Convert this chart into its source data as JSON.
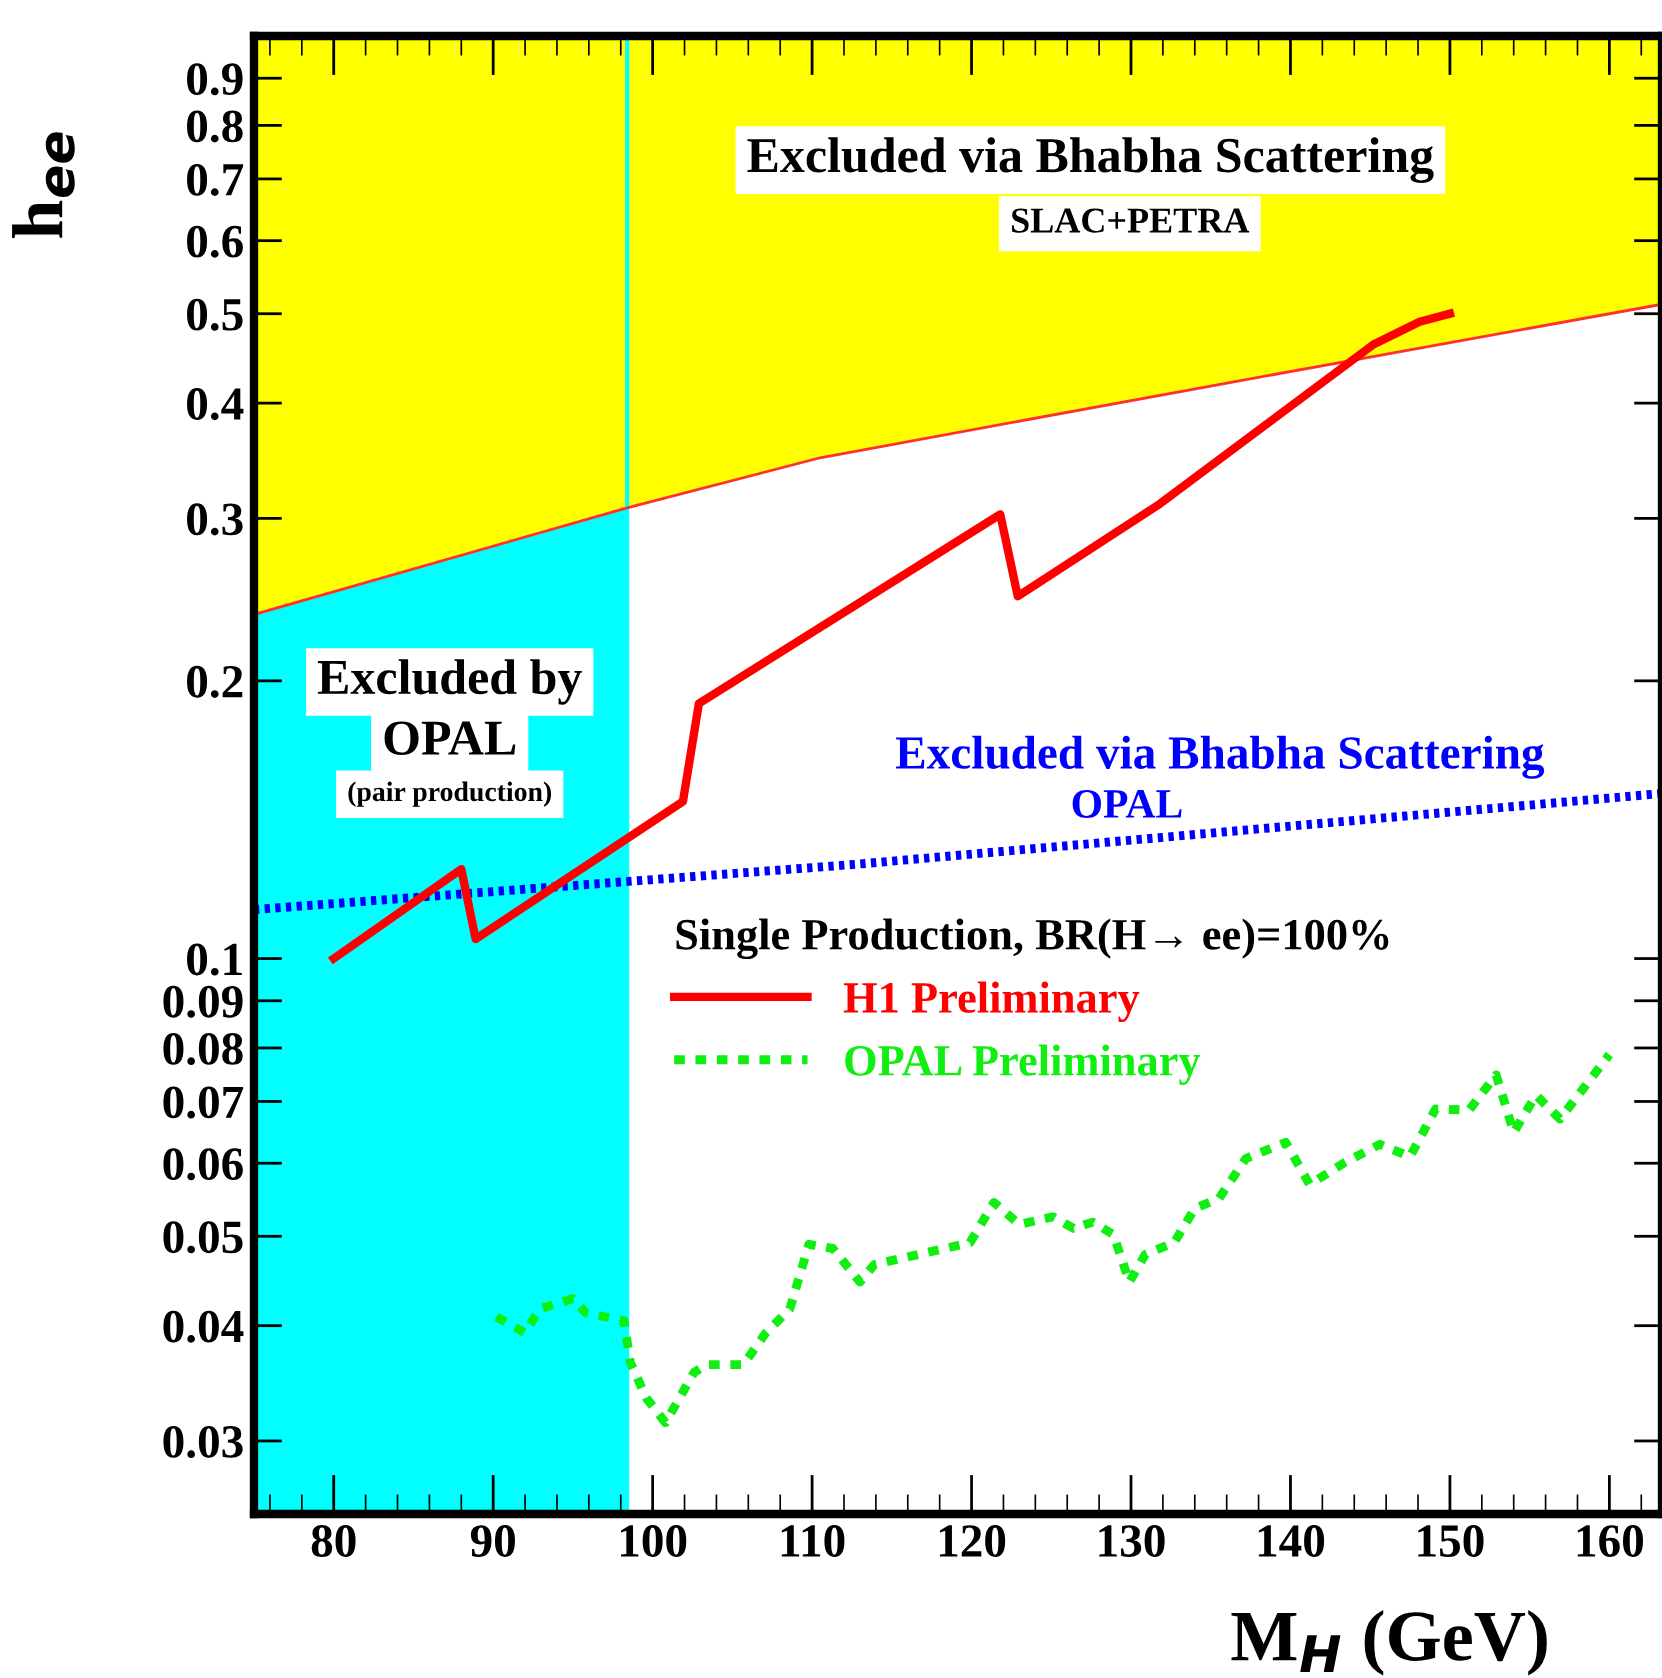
{
  "chart_data": {
    "type": "line",
    "xlabel": "M$_{H}$ (GeV)",
    "ylabel": "h$_{ee}$",
    "legend_title": "Single Production, BR(H→ ee)=100%",
    "log": "y",
    "grid": false,
    "legend": "right",
    "xlim": [
      75,
      163.3
    ],
    "xticks": [
      80,
      90,
      100,
      110,
      120,
      130,
      140,
      150,
      160
    ],
    "ylim": [
      0.025,
      1.0
    ],
    "yticks": [
      0.03,
      0.04,
      0.05,
      0.06,
      0.07,
      0.08,
      0.09,
      0.1,
      0.2,
      0.3,
      0.4,
      0.5,
      0.6,
      0.7,
      0.8,
      0.9
    ],
    "series": [
      {
        "type": "line",
        "color": "#ff3030",
        "line_style": "solid",
        "x": [
          75,
          98.4,
          110.5,
          135.5,
          163.3
        ],
        "values": [
          0.236,
          0.308,
          0.349,
          0.419,
          0.512
        ]
      },
      {
        "type": "area",
        "color": "#ffff00",
        "x": [
          75,
          98.4,
          110.5,
          135.5,
          163.3
        ],
        "values": [
          1.0,
          1.0,
          1.0,
          1.0,
          1.0
        ]
      },
      {
        "type": "area",
        "color": "#00ffff",
        "x": [
          75,
          98.4
        ],
        "values": [
          0.236,
          0.308
        ]
      },
      {
        "type": "line",
        "name": "Excluded via Bhabha Scattering\nOPAL",
        "color": "#0000ff",
        "line_style": "dotted",
        "x": [
          75,
          112.7,
          163.3
        ],
        "values": [
          0.113,
          0.1265,
          0.151
        ]
      },
      {
        "name": "H1 Preliminary",
        "color": "#ff0000",
        "line_style": "solid",
        "x": [
          80,
          88.0,
          88.9,
          101.9,
          102.9,
          121.8,
          122.9,
          131.8,
          145.2,
          148.1,
          150
        ],
        "values": [
          0.1,
          0.125,
          0.105,
          0.148,
          0.189,
          0.303,
          0.247,
          0.311,
          0.463,
          0.49,
          0.5
        ]
      },
      {
        "name": "OPAL Preliminary",
        "color": "#11ee11",
        "line_style": "dashed",
        "x": [
          90.2,
          92.0,
          92.9,
          95.0,
          95.8,
          98.2,
          98.6,
          99.6,
          100.8,
          102.6,
          103.4,
          105.7,
          107.1,
          108.6,
          109.8,
          111.3,
          113.0,
          113.9,
          116.7,
          119.9,
          121.4,
          123.0,
          125.1,
          126.4,
          127.6,
          128.9,
          129.9,
          130.9,
          132.7,
          134.0,
          135.5,
          137.2,
          139.7,
          141.2,
          143.4,
          145.6,
          147.5,
          149.1,
          151.2,
          152.9,
          154.0,
          155.4,
          156.9,
          160.0
        ],
        "values": [
          0.0409,
          0.0393,
          0.0417,
          0.0428,
          0.0413,
          0.0405,
          0.0365,
          0.0334,
          0.0314,
          0.0356,
          0.0363,
          0.0363,
          0.0393,
          0.0417,
          0.049,
          0.0485,
          0.0446,
          0.0466,
          0.0478,
          0.0492,
          0.0544,
          0.0515,
          0.0525,
          0.051,
          0.0518,
          0.0502,
          0.0446,
          0.0478,
          0.0492,
          0.0536,
          0.0549,
          0.0607,
          0.0632,
          0.0569,
          0.0601,
          0.0629,
          0.061,
          0.0687,
          0.0685,
          0.0748,
          0.0648,
          0.0711,
          0.067,
          0.0787
        ]
      }
    ],
    "ref_lines": [
      {
        "axis": "x",
        "value": 98.4,
        "color": "#00ffff"
      }
    ],
    "annotations": [
      "Excluded via Bhabha Scattering",
      "SLAC+PETRA",
      "Excluded by",
      "OPAL",
      "(pair production)"
    ]
  }
}
